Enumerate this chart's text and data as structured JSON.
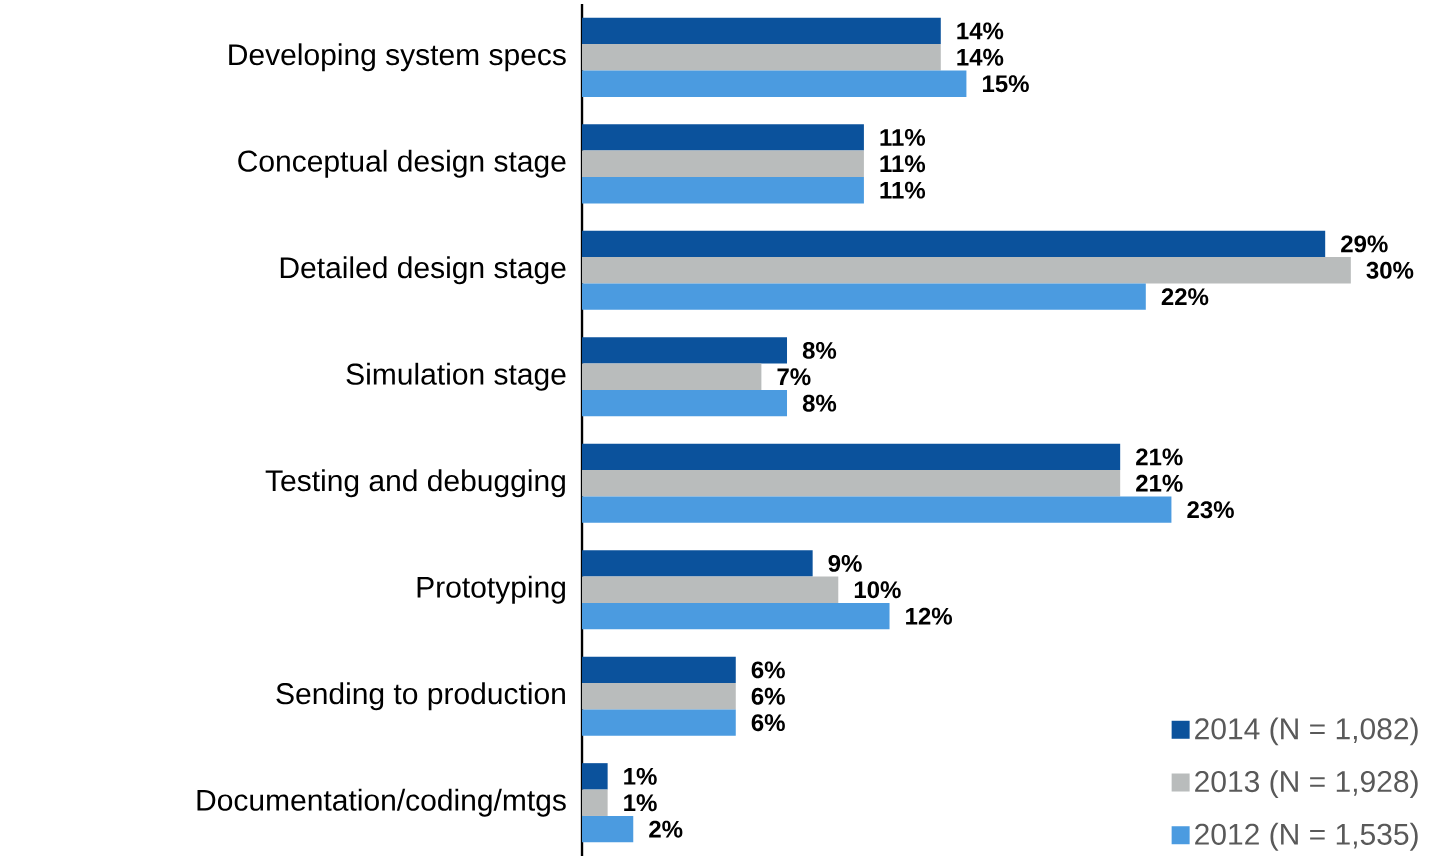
{
  "chart_data": {
    "type": "bar",
    "orientation": "horizontal",
    "categories": [
      "Developing system specs",
      "Conceptual design stage",
      "Detailed design stage",
      "Simulation stage",
      "Testing and debugging",
      "Prototyping",
      "Sending to production",
      "Documentation/coding/mtgs"
    ],
    "series": [
      {
        "name": "2014 (N = 1,082)",
        "color": "#0b529c",
        "values": [
          14,
          11,
          29,
          8,
          21,
          9,
          6,
          1
        ],
        "value_labels": [
          "14%",
          "11%",
          "29%",
          "8%",
          "21%",
          "9%",
          "6%",
          "1%"
        ]
      },
      {
        "name": "2013 (N = 1,928)",
        "color": "#b9bcbc",
        "values": [
          14,
          11,
          30,
          7,
          21,
          10,
          6,
          1
        ],
        "value_labels": [
          "14%",
          "11%",
          "30%",
          "7%",
          "21%",
          "10%",
          "6%",
          "1%"
        ]
      },
      {
        "name": "2012 (N = 1,535)",
        "color": "#4b9be0",
        "values": [
          15,
          11,
          22,
          8,
          23,
          12,
          6,
          2
        ],
        "value_labels": [
          "15%",
          "11%",
          "22%",
          "8%",
          "23%",
          "12%",
          "6%",
          "2%"
        ]
      }
    ],
    "legend": "bottom right"
  }
}
